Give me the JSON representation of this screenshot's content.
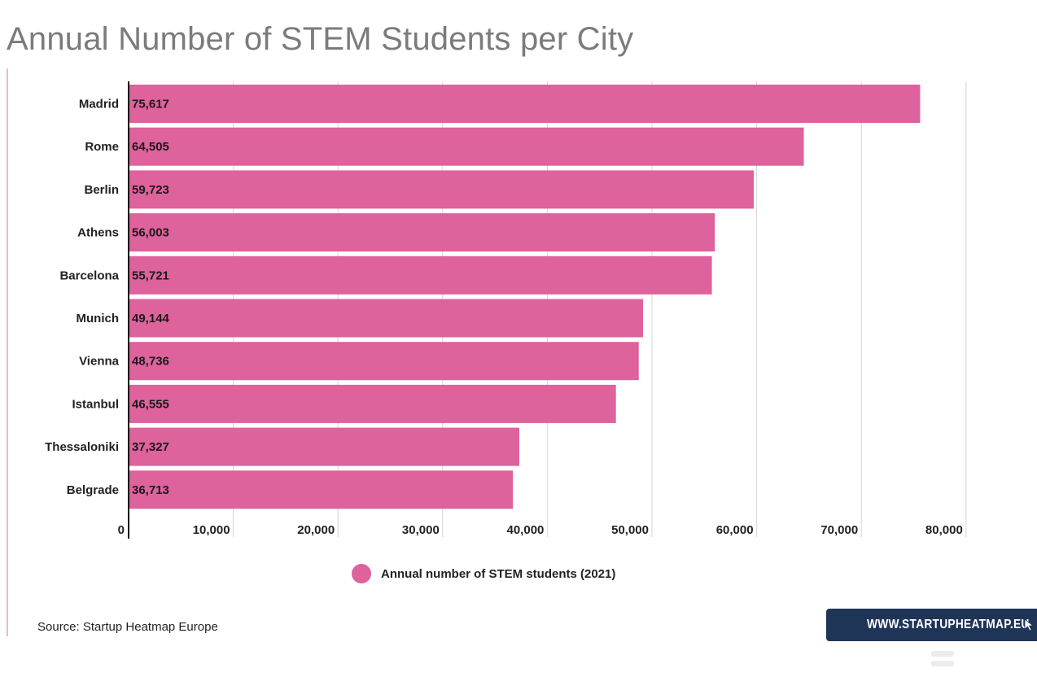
{
  "chart_data": {
    "type": "bar",
    "orientation": "horizontal",
    "title": "Annual Number of STEM Students per City",
    "categories": [
      "Madrid",
      "Rome",
      "Berlin",
      "Athens",
      "Barcelona",
      "Munich",
      "Vienna",
      "Istanbul",
      "Thessaloniki",
      "Belgrade"
    ],
    "series": [
      {
        "name": "Annual number of STEM students (2021)",
        "color": "#de629c",
        "values": [
          75617,
          64505,
          59723,
          56003,
          55721,
          49144,
          48736,
          46555,
          37327,
          36713
        ],
        "labels": [
          "75,617",
          "64,505",
          "59,723",
          "56,003",
          "55,721",
          "49,144",
          "48,736",
          "46,555",
          "37,327",
          "36,713"
        ]
      }
    ],
    "xlim": [
      0,
      80000
    ],
    "x_ticks": [
      0,
      10000,
      20000,
      30000,
      40000,
      50000,
      60000,
      70000,
      80000
    ],
    "x_tick_labels": [
      "0",
      "10,000",
      "20,000",
      "30,000",
      "40,000",
      "50,000",
      "60,000",
      "70,000",
      "80,000"
    ],
    "grid": true,
    "legend_position": "bottom-center"
  },
  "source": "Source: Startup Heatmap Europe",
  "badge": {
    "label": "WWW.STARTUPHEATMAP.EU",
    "icon": "cursor-icon"
  },
  "colors": {
    "bar": "#de629c",
    "badge_bg": "#1e3557",
    "title": "#7b7b7b",
    "accent_rule": "#f4b6cf"
  }
}
